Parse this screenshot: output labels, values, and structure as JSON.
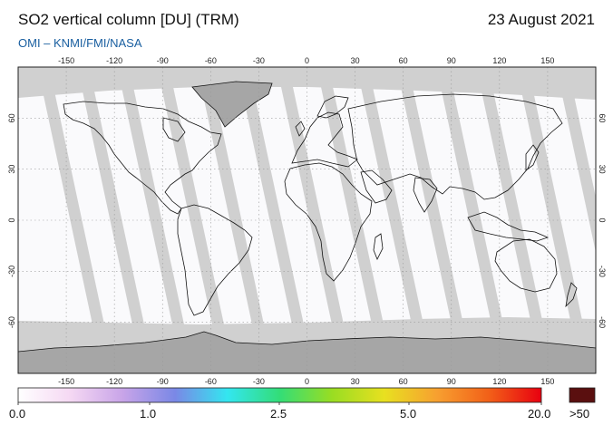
{
  "header": {
    "title": "SO2 vertical column [DU] (TRM)",
    "date": "23 August 2021",
    "credit": "OMI  –  KNMI/FMI/NASA"
  },
  "map": {
    "lon_ticks": [
      "-150",
      "-120",
      "-90",
      "-60",
      "-30",
      "0",
      "30",
      "60",
      "90",
      "120",
      "150"
    ],
    "lat_ticks": [
      "60",
      "30",
      "0",
      "-30",
      "-60"
    ],
    "colors": {
      "no_data": "#d0d0d0",
      "land_no_data": "#a6a6a6",
      "data_background": "#fafafc",
      "coastline": "#111111"
    }
  },
  "colorbar": {
    "labels": [
      "0.0",
      "1.0",
      "2.5",
      "5.0",
      "20.0"
    ],
    "overflow_label": ">50",
    "overflow_color": "#5a0f0f",
    "stops": [
      "#ffffff",
      "#f5d8f3",
      "#c8a4e8",
      "#7a88e6",
      "#33e6f0",
      "#33dd77",
      "#99dd22",
      "#e8e020",
      "#f7a030",
      "#f26018",
      "#e80010"
    ]
  }
}
